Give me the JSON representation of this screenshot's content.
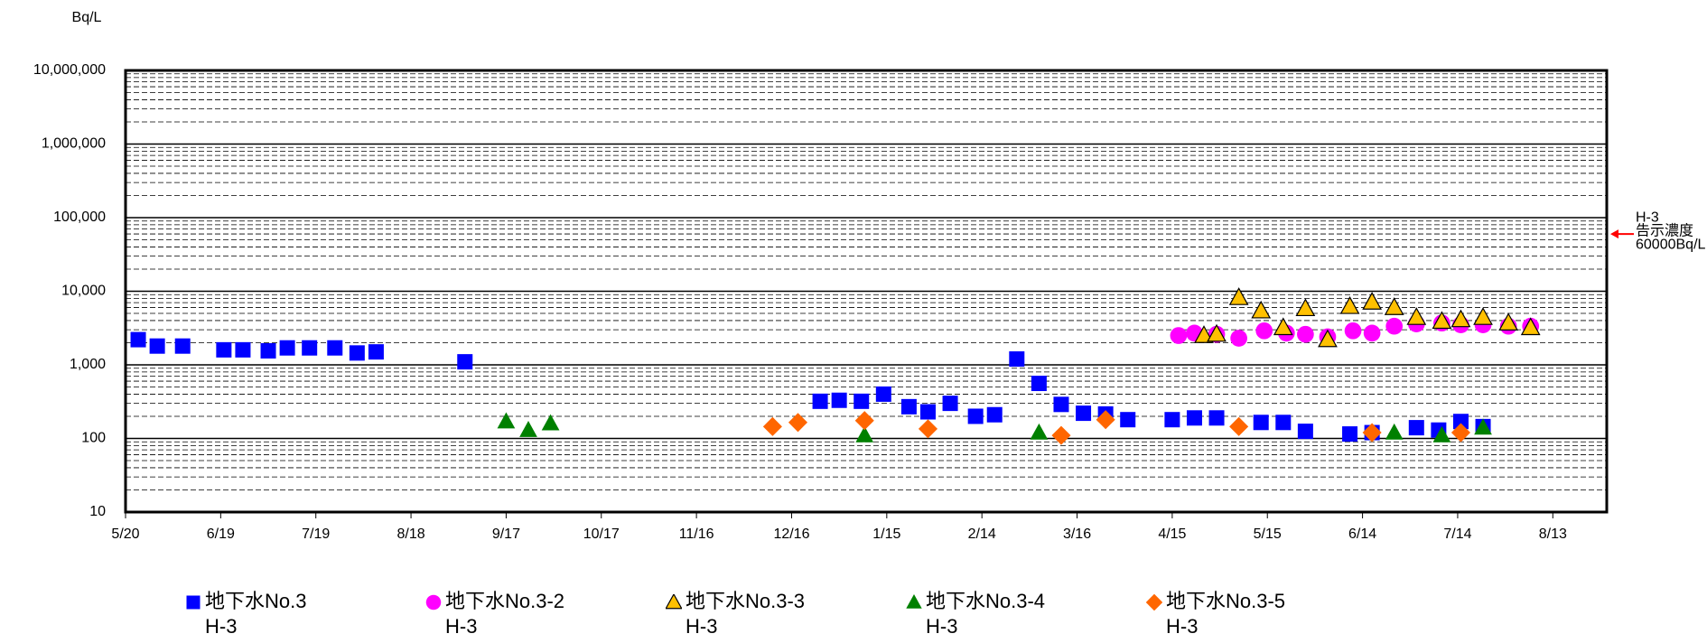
{
  "chart_data": {
    "type": "scatter",
    "ylabel": "Bq/L",
    "log_y": true,
    "grid": true,
    "xlim": [
      0,
      467
    ],
    "ylim": [
      10,
      10000000
    ],
    "xticks": [
      {
        "value": 0,
        "label": "5/20"
      },
      {
        "value": 30,
        "label": "6/19"
      },
      {
        "value": 60,
        "label": "7/19"
      },
      {
        "value": 90,
        "label": "8/18"
      },
      {
        "value": 120,
        "label": "9/17"
      },
      {
        "value": 150,
        "label": "10/17"
      },
      {
        "value": 180,
        "label": "11/16"
      },
      {
        "value": 210,
        "label": "12/16"
      },
      {
        "value": 240,
        "label": "1/15"
      },
      {
        "value": 270,
        "label": "2/14"
      },
      {
        "value": 300,
        "label": "3/16"
      },
      {
        "value": 330,
        "label": "4/15"
      },
      {
        "value": 360,
        "label": "5/15"
      },
      {
        "value": 390,
        "label": "6/14"
      },
      {
        "value": 420,
        "label": "7/14"
      },
      {
        "value": 450,
        "label": "8/13"
      }
    ],
    "yticks": [
      10,
      100,
      {
        "value": 1000,
        "label": "1,000"
      },
      {
        "value": 10000,
        "label": "10,000"
      },
      {
        "value": 100000,
        "label": "100,000"
      },
      {
        "value": 1000000,
        "label": "1,000,000"
      },
      {
        "value": 10000000,
        "label": "10,000,000"
      }
    ],
    "reference_line": {
      "value": 60000,
      "color": "#ff0000",
      "label": [
        "H-3",
        "告示濃度",
        "60000Bq/L"
      ]
    },
    "series": [
      {
        "name": "地下水No.3\nH-3",
        "color": "#0000ff",
        "marker": "square",
        "x": [
          4,
          10,
          18,
          31,
          37,
          45,
          51,
          58,
          66,
          73,
          79,
          107,
          219,
          225,
          232,
          239,
          247,
          253,
          260,
          268,
          274,
          281,
          288,
          295,
          302,
          309,
          316,
          330,
          337,
          344,
          358,
          365,
          372,
          386,
          393,
          407,
          414,
          421,
          428
        ],
        "values": [
          2200,
          1800,
          1800,
          1600,
          1600,
          1550,
          1700,
          1700,
          1700,
          1450,
          1500,
          1100,
          320,
          330,
          320,
          400,
          270,
          230,
          300,
          200,
          210,
          1200,
          560,
          290,
          220,
          215,
          180,
          180,
          190,
          190,
          165,
          165,
          125,
          115,
          120,
          140,
          130,
          170,
          145
        ]
      },
      {
        "name": "地下水No.3-2\nH-3",
        "color": "#ff00ff",
        "marker": "circle",
        "x": [
          332,
          337,
          344,
          351,
          359,
          366,
          372,
          379,
          387,
          393,
          400,
          407,
          415,
          421,
          428,
          436,
          443
        ],
        "values": [
          2500,
          2700,
          2600,
          2300,
          2900,
          2700,
          2600,
          2400,
          2900,
          2700,
          3350,
          3600,
          3700,
          3500,
          3500,
          3350,
          3350
        ]
      },
      {
        "name": "地下水No.3-3\nH-3",
        "color": "#ffc000",
        "edgecolor": "#000000",
        "marker": "triangle",
        "x": [
          340,
          344,
          351,
          358,
          365,
          372,
          379,
          386,
          393,
          400,
          407,
          415,
          421,
          428,
          436,
          443
        ],
        "values": [
          2500,
          2600,
          8200,
          5400,
          3200,
          5800,
          2200,
          6200,
          7100,
          6000,
          4400,
          3900,
          4100,
          4400,
          3700,
          3200
        ]
      },
      {
        "name": "地下水No.3-4\nH-3",
        "color": "#008000",
        "marker": "triangle",
        "x": [
          120,
          127,
          134,
          233,
          288,
          400,
          415,
          428
        ],
        "values": [
          170,
          130,
          160,
          110,
          120,
          120,
          110,
          140
        ]
      },
      {
        "name": "地下水No.3-5\nH-3",
        "color": "#ff6600",
        "marker": "diamond",
        "x": [
          204,
          212,
          233,
          253,
          295,
          309,
          351,
          393,
          421
        ],
        "values": [
          145,
          165,
          175,
          135,
          110,
          180,
          145,
          120,
          120
        ]
      }
    ]
  }
}
